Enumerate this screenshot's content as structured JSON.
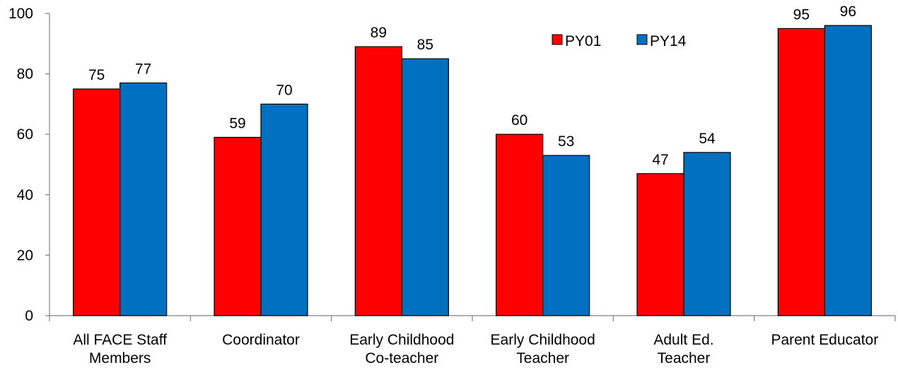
{
  "chart_data": {
    "type": "bar",
    "categories": [
      [
        "All FACE Staff",
        "Members"
      ],
      [
        "Coordinator"
      ],
      [
        "Early Childhood",
        "Co-teacher"
      ],
      [
        "Early Childhood",
        "Teacher"
      ],
      [
        "Adult Ed.",
        "Teacher"
      ],
      [
        "Parent Educator"
      ]
    ],
    "series": [
      {
        "name": "PY01",
        "color": "#ff0000",
        "values": [
          75,
          59,
          89,
          60,
          47,
          95
        ]
      },
      {
        "name": "PY14",
        "color": "#0070c0",
        "values": [
          77,
          70,
          85,
          53,
          54,
          96
        ]
      }
    ],
    "ylim": [
      0,
      100
    ],
    "yticks": [
      0,
      20,
      40,
      60,
      80,
      100
    ],
    "grid": false,
    "legend_position": "top-center",
    "data_labels": true
  }
}
